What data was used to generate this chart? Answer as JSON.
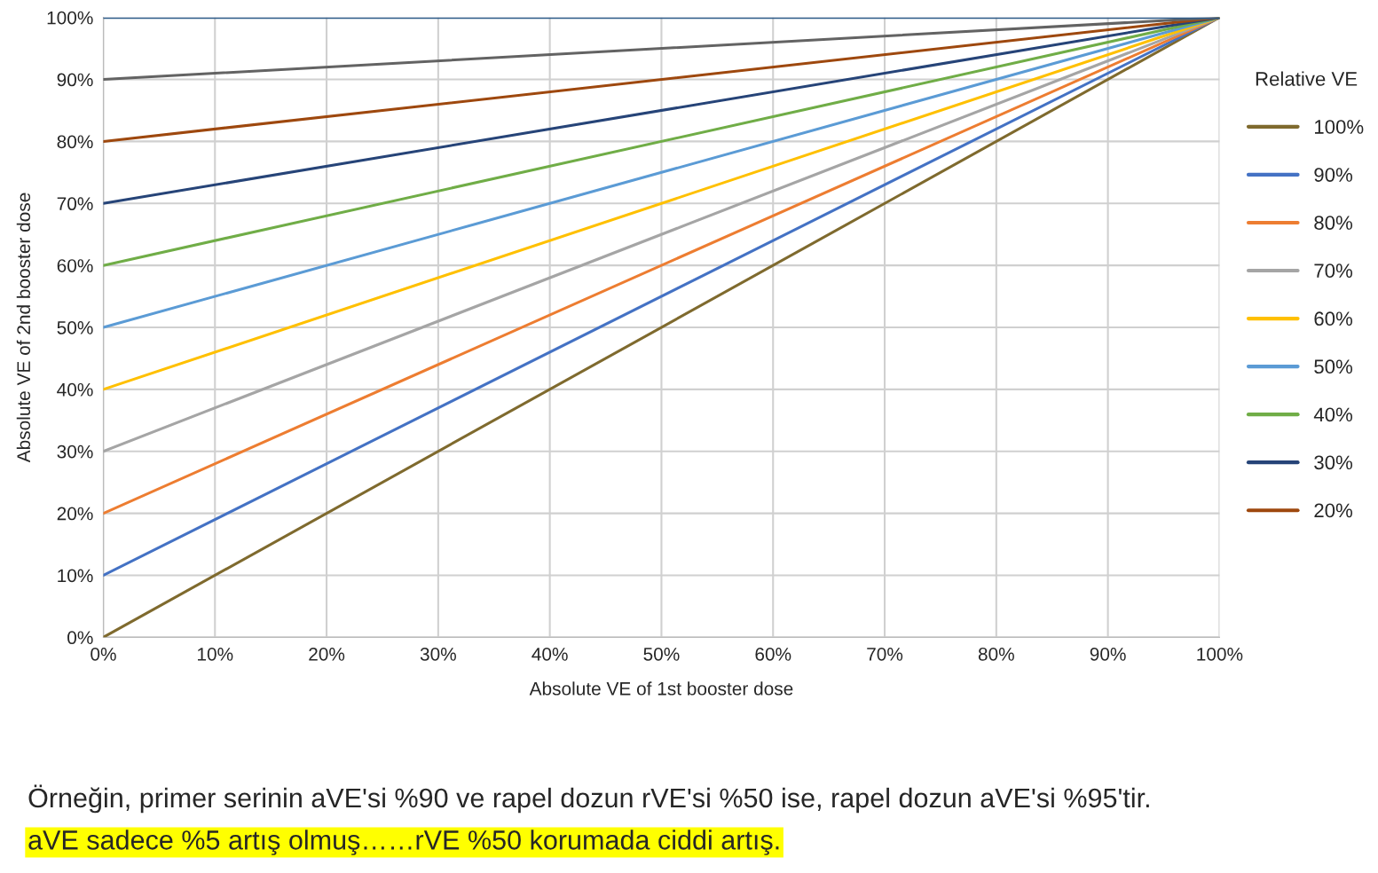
{
  "chart_data": {
    "type": "line",
    "xlabel": "Absolute VE of 1st booster dose",
    "ylabel": "Absolute VE of 2nd booster dose",
    "legend_title": "Relative VE",
    "legend": "right",
    "grid": true,
    "marker": "none",
    "line_style": "solid",
    "xlim": [
      0,
      100
    ],
    "ylim": [
      0,
      100
    ],
    "xticks": [
      {
        "value": 0,
        "label": "0%"
      },
      {
        "value": 10,
        "label": "10%"
      },
      {
        "value": 20,
        "label": "20%"
      },
      {
        "value": 30,
        "label": "30%"
      },
      {
        "value": 40,
        "label": "40%"
      },
      {
        "value": 50,
        "label": "50%"
      },
      {
        "value": 60,
        "label": "60%"
      },
      {
        "value": 70,
        "label": "70%"
      },
      {
        "value": 80,
        "label": "80%"
      },
      {
        "value": 90,
        "label": "90%"
      },
      {
        "value": 100,
        "label": "100%"
      }
    ],
    "yticks": [
      {
        "value": 0,
        "label": "0%"
      },
      {
        "value": 10,
        "label": "10%"
      },
      {
        "value": 20,
        "label": "20%"
      },
      {
        "value": 30,
        "label": "30%"
      },
      {
        "value": 40,
        "label": "40%"
      },
      {
        "value": 50,
        "label": "50%"
      },
      {
        "value": 60,
        "label": "60%"
      },
      {
        "value": 70,
        "label": "70%"
      },
      {
        "value": 80,
        "label": "80%"
      },
      {
        "value": 90,
        "label": "90%"
      },
      {
        "value": 100,
        "label": "100%"
      }
    ],
    "x": [
      0,
      100
    ],
    "series": [
      {
        "name": "100%",
        "color": "#7f6a2e",
        "values": [
          0,
          100
        ]
      },
      {
        "name": "90%",
        "color": "#4472c4",
        "values": [
          10,
          100
        ]
      },
      {
        "name": "80%",
        "color": "#ed7d31",
        "values": [
          20,
          100
        ]
      },
      {
        "name": "70%",
        "color": "#a5a5a5",
        "values": [
          30,
          100
        ]
      },
      {
        "name": "60%",
        "color": "#ffc000",
        "values": [
          40,
          100
        ]
      },
      {
        "name": "50%",
        "color": "#5b9bd5",
        "values": [
          50,
          100
        ]
      },
      {
        "name": "40%",
        "color": "#70ad47",
        "values": [
          60,
          100
        ]
      },
      {
        "name": "30%",
        "color": "#264478",
        "values": [
          70,
          100
        ]
      },
      {
        "name": "20%",
        "color": "#9e480e",
        "values": [
          80,
          100
        ]
      },
      {
        "color": "#636363",
        "values": [
          90,
          100
        ]
      },
      {
        "color": "#2f5c8a",
        "values": [
          100,
          100
        ]
      }
    ],
    "annotations": [
      "Örneğin, primer serinin aVE'si %90 ve rapel dozun rVE'si %50 ise, rapel dozun aVE'si %95'tir.",
      "aVE sadece %5 artış olmuş……rVE %50 korumada ciddi artış."
    ]
  }
}
